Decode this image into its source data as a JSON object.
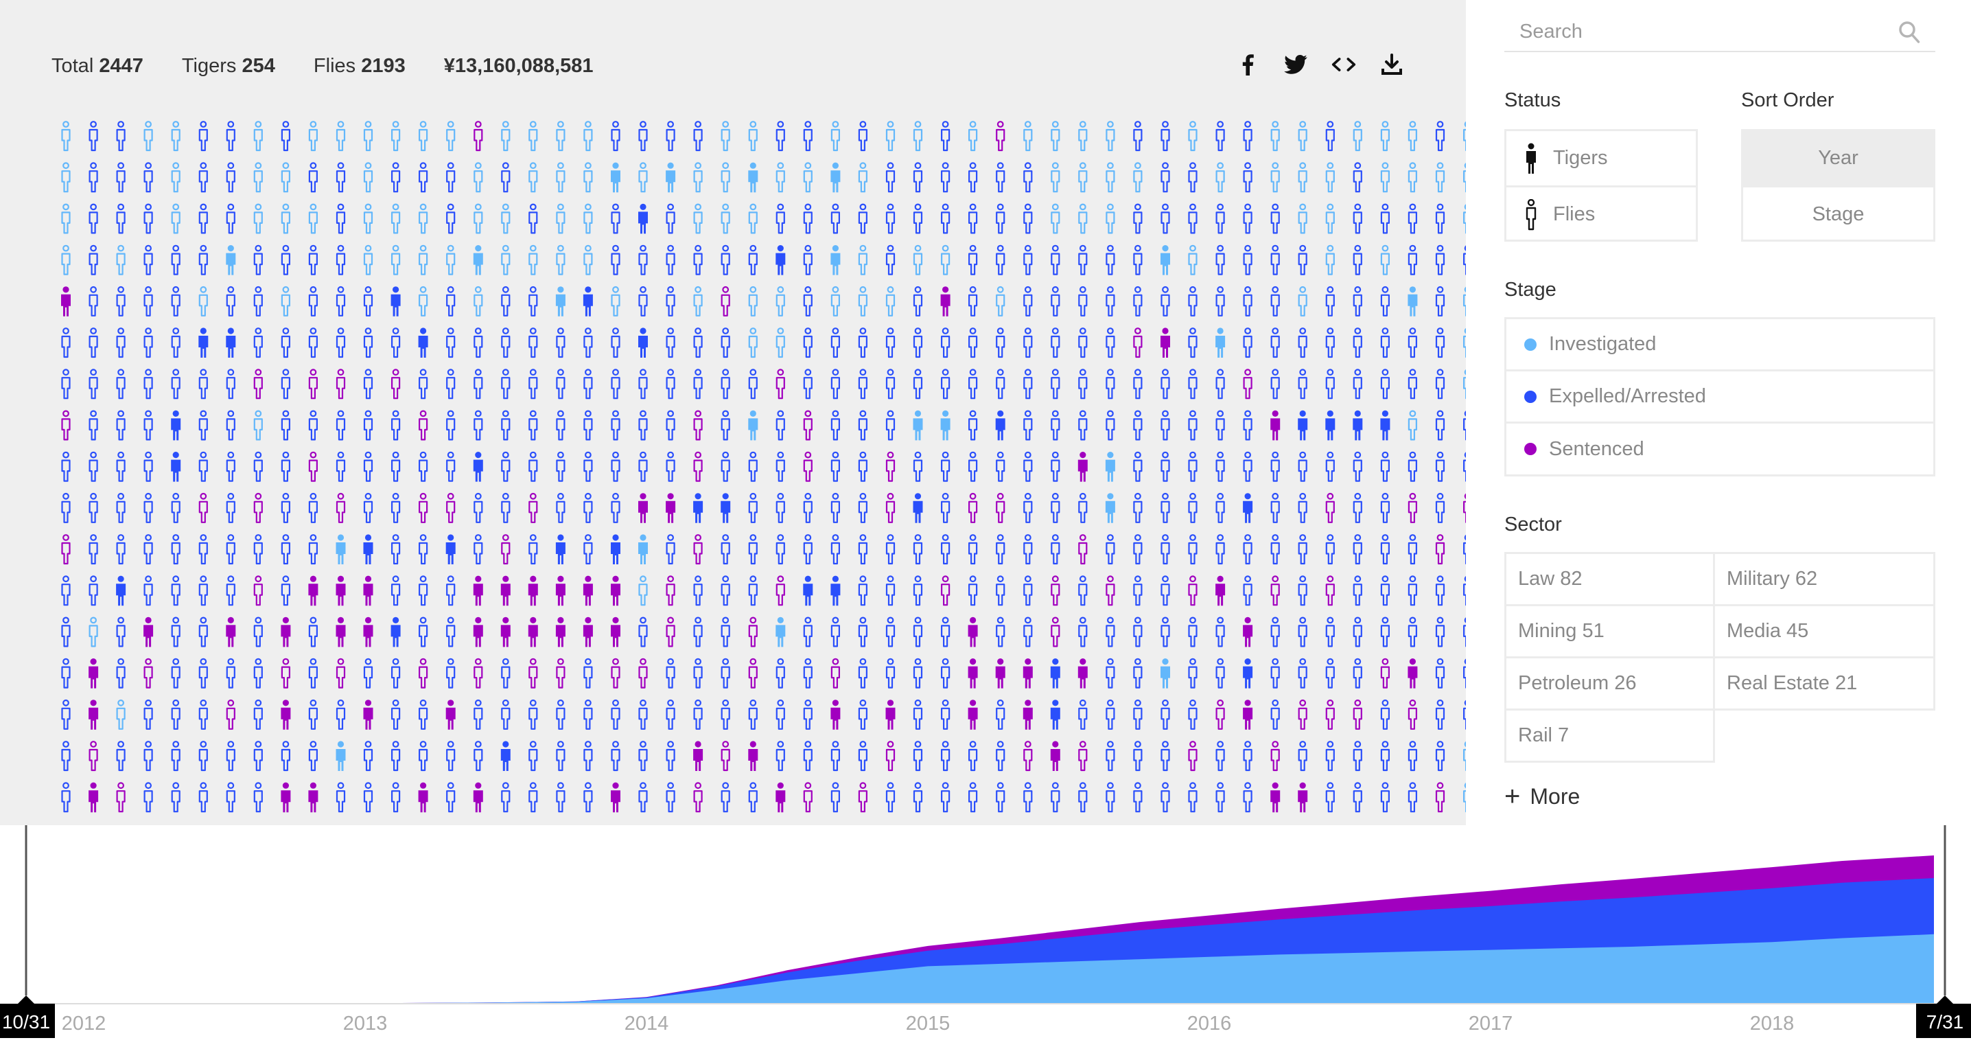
{
  "stats": {
    "total_label": "Total",
    "total_value": "2447",
    "tigers_label": "Tigers",
    "tigers_value": "254",
    "flies_label": "Flies",
    "flies_value": "2193",
    "money": "¥13,160,088,581"
  },
  "share_icons": [
    "facebook-icon",
    "twitter-icon",
    "embed-icon",
    "download-icon"
  ],
  "search": {
    "placeholder": "Search"
  },
  "status": {
    "heading": "Status",
    "options": [
      {
        "label": "Tigers",
        "icon": "tiger-figure-icon"
      },
      {
        "label": "Flies",
        "icon": "fly-figure-icon"
      }
    ]
  },
  "sort_order": {
    "heading": "Sort Order",
    "options": [
      {
        "label": "Year",
        "selected": true
      },
      {
        "label": "Stage",
        "selected": false
      }
    ]
  },
  "stage": {
    "heading": "Stage",
    "options": [
      {
        "label": "Investigated",
        "color": "#63b7fb"
      },
      {
        "label": "Expelled/Arrested",
        "color": "#2a4ffb"
      },
      {
        "label": "Sentenced",
        "color": "#a100bf"
      }
    ]
  },
  "sector": {
    "heading": "Sector",
    "items": [
      "Law 82",
      "Military 62",
      "Mining 51",
      "Media 45",
      "Petroleum 26",
      "Real Estate 21",
      "Rail 7"
    ],
    "more_label": "More"
  },
  "colors": {
    "investigated": "#63b7fb",
    "expelled": "#2a4ffb",
    "sentenced": "#a100bf",
    "panel_bg": "#efefef"
  },
  "grid_rows": [
    "lbbllbblbllllllsllllbbbbllbblbllblsllllbblbbllblllbl",
    "lbbblbbllbblbbblblllLlLllLllLlbbbbbbllllbblblllbllll",
    "lbbblbblllblllbllbllbBblllbbbbbbbbbblllbbbbbbllbbbbl",
    "lblbbbLbbbbllllLllllbbbbbbBbLlbllbbbbbbbLlbbbblblbbb",
    "SbbbblbblbbbBlblbbLBlbblsllblllbSblbbbbbbbbbblbbbLbl",
    "bbbbbBBbbbbbbBbbbbbbbBbbbllbbbbbbbbbbbbsSbLbbbbbbbbl",
    "bbbbbbbsbssbsbbbbbbbbbbbbbsbbbbbbbbbbbbbbbbsbbbbbbbl",
    "sbbbBbblbbbbbsbbbbbbbbbsbLbsbbbLLbBbbbbbbbbbSBBBBlbb",
    "bbbbBbbbbsbbbbbBbbbbbbbsbbbsbbsbbbbbbSLbbbbbbbbbbbbb",
    "bbbbbsbsbbsbbssbbsbbbSSBBbbbbbsBbssbbbLbbbbBbbsbbsbs",
    "sbbbbbbbbbLBbbBbsbBbBLbsbbbbbbbbbbbbbsbbbbbbbbbbbbsb",
    "bbBbbbbsbSSSbbbSSSSSSlsbbbsBBbbbsbbbsbsbbsSbsbsbbbbb",
    "blbSbbSbSbSSBbbSSSSSSbsbbsLbbbbbbSbbsbbbbbbSbbbbbbbb",
    "bSbsbbbbsbsbbsbsbssbssbbbsbbsbbbbSSSBSbbLbbBbbbbsSbb",
    "bSlbbbsbSbbSbbSbbbbbbbbbbbbbSbSbbSbSBbbbbbsSbsssbsbb",
    "bsbbbbbbbbLbbbbbBbbbbbbSsSbbbbsbbbbsSsbbbsbbsbbbbbbl",
    "bSsbbbbbSSbbbSbSbbbbSbbsbbSsbsbbbbbbbbbbbbbbSSbbbbsl"
  ],
  "timeline": {
    "x_ticks": [
      "2012",
      "2013",
      "2014",
      "2015",
      "2016",
      "2017",
      "2018"
    ],
    "start_handle": "10/31",
    "end_handle": "7/31"
  },
  "chart_data": {
    "type": "area",
    "x": [
      "2011-10",
      "2012-06",
      "2013-01",
      "2013-06",
      "2013-10",
      "2014-01",
      "2014-04",
      "2014-07",
      "2014-10",
      "2015-01",
      "2015-04",
      "2015-07",
      "2015-10",
      "2016-01",
      "2016-04",
      "2016-07",
      "2016-10",
      "2017-01",
      "2017-04",
      "2017-07",
      "2017-10",
      "2018-01",
      "2018-04",
      "2018-07"
    ],
    "series": [
      {
        "name": "Investigated",
        "values": [
          0,
          0,
          3,
          6,
          12,
          35,
          90,
          150,
          195,
          240,
          255,
          270,
          285,
          300,
          315,
          325,
          335,
          345,
          355,
          365,
          380,
          395,
          420,
          445
        ]
      },
      {
        "name": "Expelled/Arrested",
        "values": [
          0,
          0,
          0,
          1,
          2,
          6,
          22,
          50,
          80,
          100,
          125,
          155,
          185,
          205,
          225,
          245,
          265,
          280,
          300,
          315,
          330,
          345,
          355,
          360
        ]
      },
      {
        "name": "Sentenced",
        "values": [
          0,
          0,
          0,
          0,
          0,
          2,
          6,
          14,
          22,
          30,
          38,
          45,
          52,
          60,
          68,
          78,
          88,
          98,
          110,
          120,
          128,
          135,
          140,
          145
        ]
      }
    ],
    "stacked": true
  }
}
